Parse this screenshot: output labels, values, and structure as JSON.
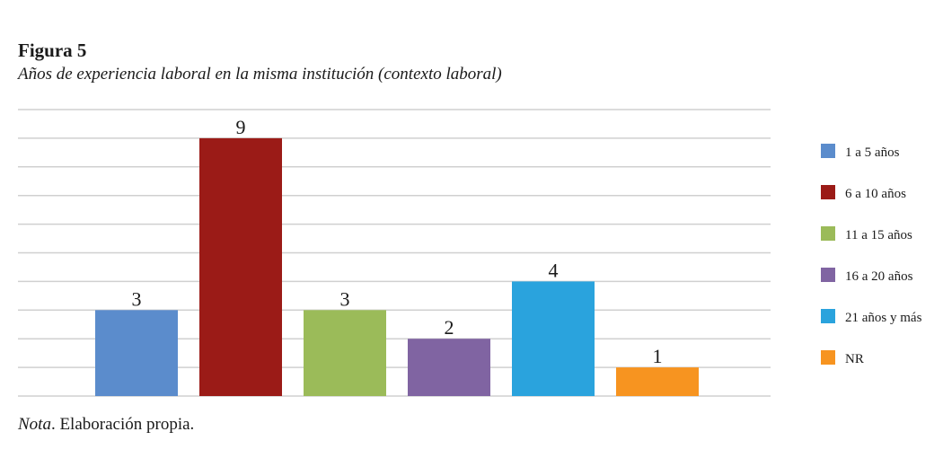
{
  "figure": {
    "label": "Figura 5",
    "title": "Años de experiencia laboral en la misma institución (contexto laboral)"
  },
  "note": {
    "prefix": "Nota",
    "text": ". Elaboración propia."
  },
  "chart_data": {
    "type": "bar",
    "categories": [
      "1 a 5 años",
      "6 a 10 años",
      "11 a 15 años",
      "16 a 20 años",
      "21 años y más",
      "NR"
    ],
    "values": [
      3,
      9,
      3,
      2,
      4,
      1
    ],
    "colors": [
      "#5b8ccc",
      "#9b1b17",
      "#9bbb59",
      "#8064a2",
      "#2aa3dd",
      "#f79420"
    ],
    "title": "",
    "xlabel": "",
    "ylabel": "",
    "ylim": [
      0,
      10
    ],
    "grid": true,
    "data_labels": true,
    "legend_position": "right"
  }
}
